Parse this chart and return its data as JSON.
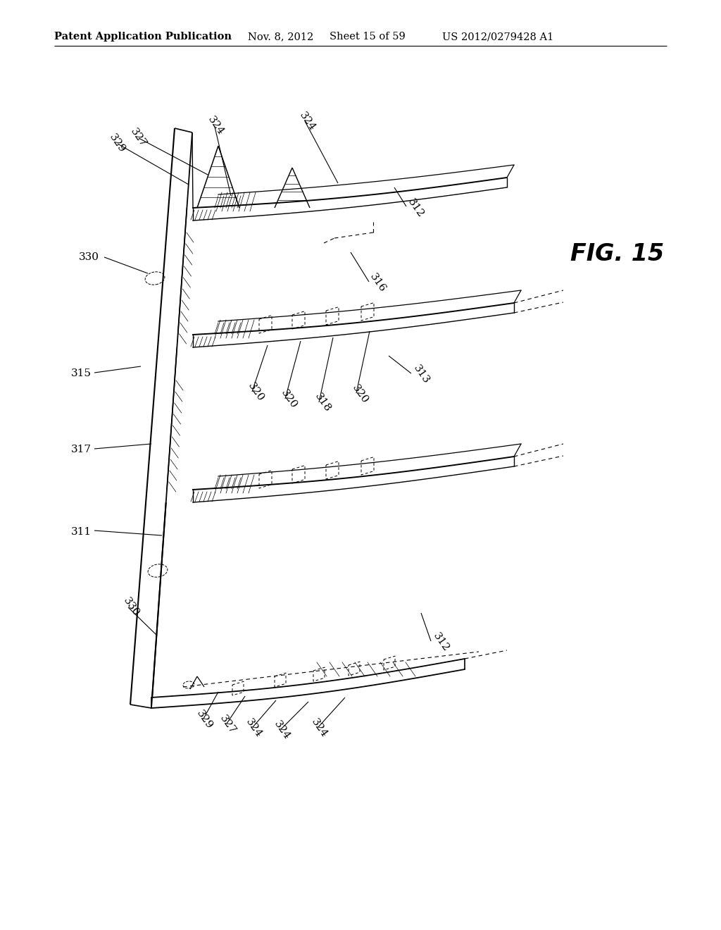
{
  "bg_color": "#ffffff",
  "header_text": "Patent Application Publication",
  "header_date": "Nov. 8, 2012",
  "header_sheet": "Sheet 15 of 59",
  "header_patent": "US 2012/0279428 A1",
  "fig_label": "FIG. 15"
}
